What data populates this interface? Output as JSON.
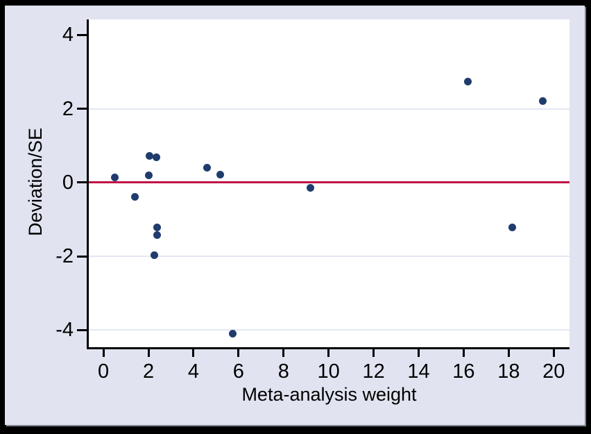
{
  "figure": {
    "frame_color": "#000000",
    "canvas_background": "#e1e4f0",
    "plot_background": "#ffffff",
    "axis_color": "#000000",
    "text_color": "#000000"
  },
  "chart_data": {
    "type": "scatter",
    "title": "",
    "xlabel": "Meta-analysis weight",
    "ylabel": "Deviation/SE",
    "xlim": [
      -0.65,
      20.7
    ],
    "ylim": [
      -4.48,
      4.42
    ],
    "x_ticks": [
      0,
      2,
      4,
      6,
      8,
      10,
      12,
      14,
      16,
      18,
      20
    ],
    "y_ticks": [
      -4,
      -2,
      0,
      2,
      4
    ],
    "gridlines_y": [
      2,
      -2,
      -4
    ],
    "grid_color": "#e2e7f2",
    "grid_on": true,
    "legend": "none",
    "zero_line": {
      "y": 0,
      "color": "#c11347"
    },
    "marker_color": "#1f3c6c",
    "points": [
      {
        "x": 0.5,
        "y": 0.13
      },
      {
        "x": 1.4,
        "y": -0.38
      },
      {
        "x": 2.0,
        "y": 0.19
      },
      {
        "x": 2.05,
        "y": 0.73
      },
      {
        "x": 2.35,
        "y": 0.68
      },
      {
        "x": 2.25,
        "y": -1.96
      },
      {
        "x": 2.37,
        "y": -1.21
      },
      {
        "x": 2.37,
        "y": -1.43
      },
      {
        "x": 4.6,
        "y": 0.41
      },
      {
        "x": 5.2,
        "y": 0.21
      },
      {
        "x": 5.75,
        "y": -4.09
      },
      {
        "x": 9.2,
        "y": -0.15
      },
      {
        "x": 16.2,
        "y": 2.73
      },
      {
        "x": 18.15,
        "y": -1.22
      },
      {
        "x": 19.5,
        "y": 2.2
      }
    ]
  }
}
